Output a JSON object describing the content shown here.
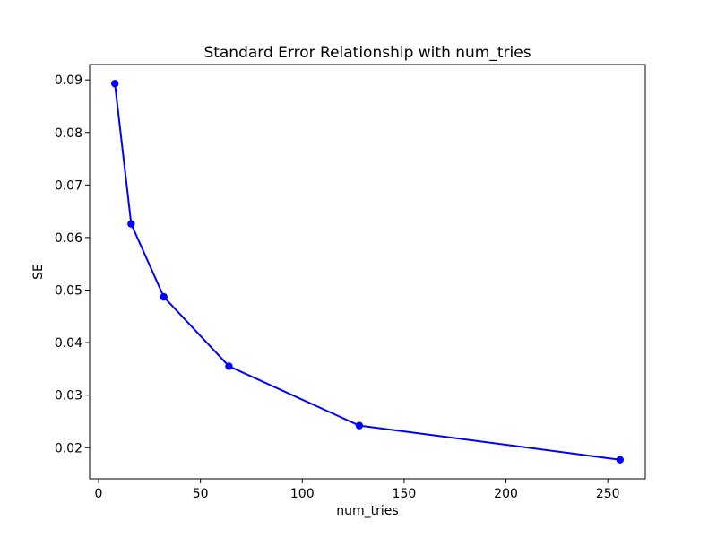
{
  "figure": {
    "background": "#ffffff"
  },
  "chart_data": {
    "type": "line",
    "title": "Standard Error Relationship with num_tries",
    "xlabel": "num_tries",
    "ylabel": "SE",
    "series": [
      {
        "name": "SE vs num_tries",
        "x": [
          8,
          16,
          32,
          64,
          128,
          256
        ],
        "y": [
          0.0893,
          0.0626,
          0.0487,
          0.0355,
          0.0242,
          0.0177
        ],
        "color": "#0000ff",
        "marker": "o",
        "marker_radius": 4.2,
        "line_width": 2
      }
    ],
    "xticks": [
      0,
      50,
      100,
      150,
      200,
      250
    ],
    "xtick_labels": [
      "0",
      "50",
      "100",
      "150",
      "200",
      "250"
    ],
    "yticks": [
      0.02,
      0.03,
      0.04,
      0.05,
      0.06,
      0.07,
      0.08,
      0.09
    ],
    "ytick_labels": [
      "0.02",
      "0.03",
      "0.04",
      "0.05",
      "0.06",
      "0.07",
      "0.08",
      "0.09"
    ],
    "xlim": [
      -4.4,
      268.4
    ],
    "ylim": [
      0.01407,
      0.09293
    ],
    "grid": false,
    "legend": false,
    "spine_color": "#000000",
    "tick_color": "#000000"
  }
}
